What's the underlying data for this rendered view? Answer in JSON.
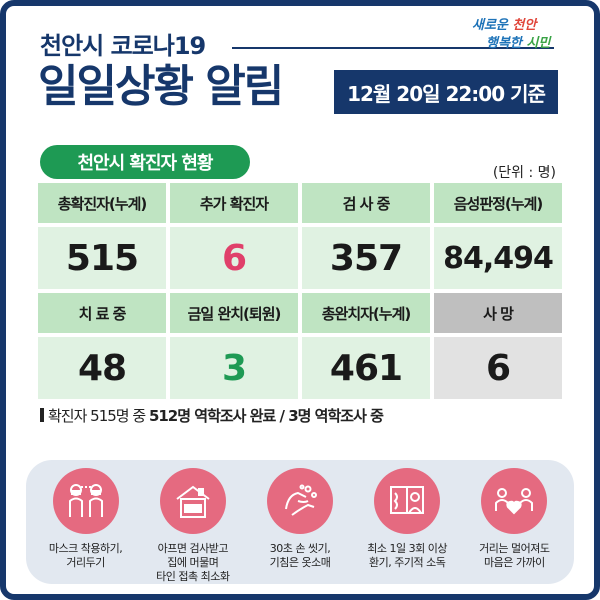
{
  "header": {
    "subtitle": "천안시 코로나19",
    "title": "일일상황 알림",
    "date": "12월 20일 22:00 기준",
    "logo": {
      "line1_a": "새로운 ",
      "line1_b": "천안",
      "line2_a": "행복한 ",
      "line2_b": "시민"
    }
  },
  "section": {
    "title": "천안시 확진자 현황",
    "unit": "(단위 : 명)"
  },
  "stats": {
    "row1": [
      {
        "label": "총확진자(누계)",
        "value": "515",
        "color": "#1a1a1a"
      },
      {
        "label": "추가 확진자",
        "value": "6",
        "color": "#e0406a"
      },
      {
        "label": "검 사 중",
        "value": "357",
        "color": "#1a1a1a"
      },
      {
        "label": "음성판정(누계)",
        "value": "84,494",
        "color": "#1a1a1a"
      }
    ],
    "row2": [
      {
        "label": "치 료 중",
        "value": "48",
        "color": "#1a1a1a"
      },
      {
        "label": "금일 완치(퇴원)",
        "value": "3",
        "color": "#1e9a54"
      },
      {
        "label": "총완치자(누계)",
        "value": "461",
        "color": "#1a1a1a"
      },
      {
        "label": "사  망",
        "value": "6",
        "color": "#1a1a1a"
      }
    ]
  },
  "note": {
    "prefix": "확진자 515명 중 ",
    "bold": "512명 역학조사 완료 / 3명 역학조사 중"
  },
  "tips": [
    {
      "icon": "mask-people-icon",
      "text": "마스크 착용하기,\n거리두기"
    },
    {
      "icon": "apartment-icon",
      "text": "아프면 검사받고\n집에 머물며\n타인 접촉 최소화"
    },
    {
      "icon": "handwash-icon",
      "text": "30초 손 씻기,\n기침은 옷소매"
    },
    {
      "icon": "window-ventilation-icon",
      "text": "최소 1일 3회 이상\n환기, 주기적 소독"
    },
    {
      "icon": "distance-heart-icon",
      "text": "거리는 멀어져도\n마음은 가까이"
    }
  ],
  "colors": {
    "navy": "#16376b",
    "green": "#1e9a54",
    "pink": "#e56a80"
  }
}
